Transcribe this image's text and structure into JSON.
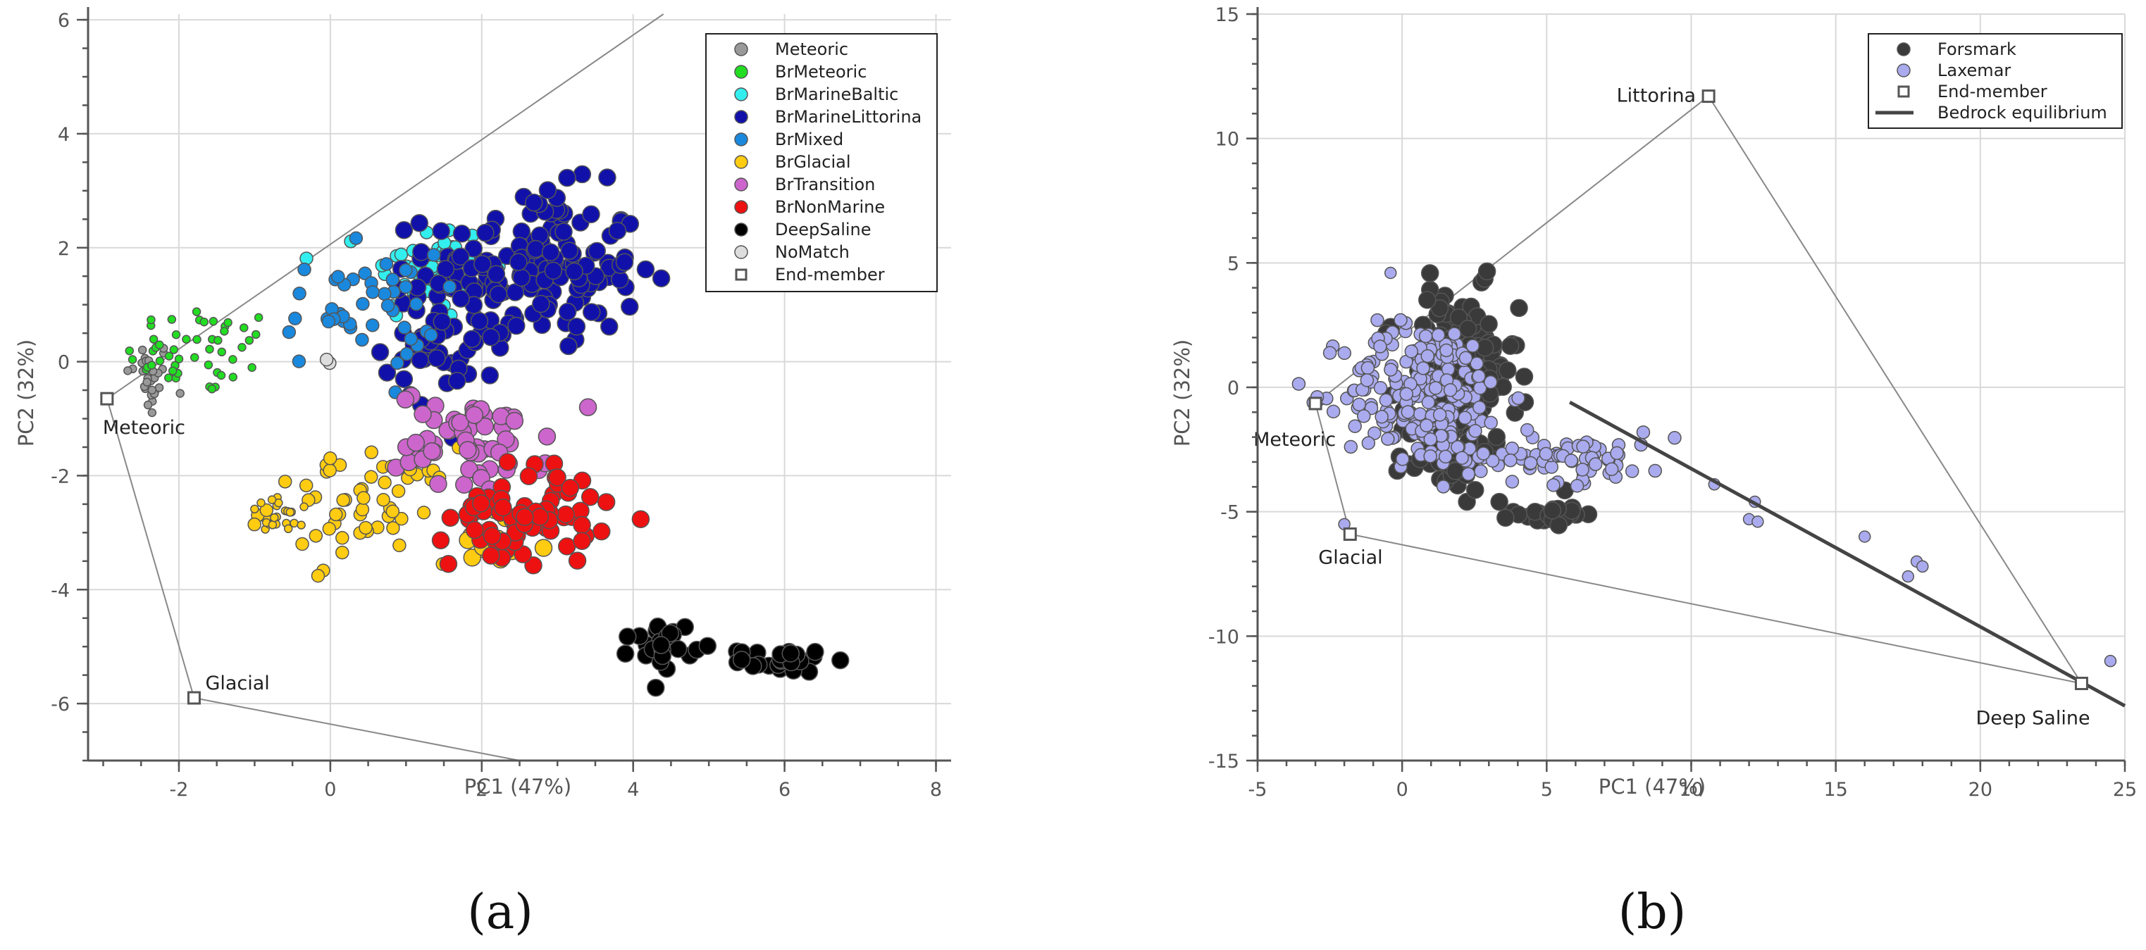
{
  "chart_data": [
    {
      "type": "scatter",
      "panel": "(a)",
      "xlabel": "PC1 (47%)",
      "ylabel": "PC2 (32%)",
      "xlim": [
        -3.2,
        8.2
      ],
      "ylim": [
        -7,
        6.1
      ],
      "xticks": [
        -2,
        0,
        2,
        4,
        6,
        8
      ],
      "yticks": [
        -6,
        -4,
        -2,
        0,
        2,
        4,
        6
      ],
      "grid": true,
      "legend_position": "top-right",
      "series": [
        {
          "name": "Meteoric",
          "color": "#999999",
          "clusters": [
            {
              "cx": -2.4,
              "cy": -0.3,
              "sx": 0.15,
              "sy": 0.35,
              "n": 30,
              "size": "small"
            }
          ]
        },
        {
          "name": "BrMeteoric",
          "color": "#22dd22",
          "clusters": [
            {
              "cx": -1.7,
              "cy": 0.2,
              "sx": 0.5,
              "sy": 0.4,
              "n": 50,
              "size": "small"
            }
          ]
        },
        {
          "name": "BrMarineBaltic",
          "color": "#33eeee",
          "clusters": [
            {
              "cx": 1.3,
              "cy": 1.6,
              "sx": 0.4,
              "sy": 0.45,
              "n": 55,
              "size": "medium"
            }
          ]
        },
        {
          "name": "BrMarineLittorina",
          "color": "#1111aa",
          "clusters": [
            {
              "cx": 2.7,
              "cy": 1.6,
              "sx": 0.7,
              "sy": 0.7,
              "n": 170,
              "size": "large"
            },
            {
              "cx": 1.5,
              "cy": 0.4,
              "sx": 0.4,
              "sy": 0.5,
              "n": 40,
              "size": "large"
            }
          ]
        },
        {
          "name": "BrMixed",
          "color": "#1a88dd",
          "clusters": [
            {
              "cx": 0.4,
              "cy": 0.9,
              "sx": 0.5,
              "sy": 0.5,
              "n": 45,
              "size": "medium"
            }
          ]
        },
        {
          "name": "BrGlacial",
          "color": "#ffcc11",
          "clusters": [
            {
              "cx": 0.4,
              "cy": -2.5,
              "sx": 0.6,
              "sy": 0.5,
              "n": 60,
              "size": "medium"
            },
            {
              "cx": -0.6,
              "cy": -2.7,
              "sx": 0.25,
              "sy": 0.15,
              "n": 22,
              "size": "small"
            },
            {
              "cx": 2.2,
              "cy": -3.2,
              "sx": 0.35,
              "sy": 0.3,
              "n": 18,
              "size": "large"
            }
          ]
        },
        {
          "name": "BrTransition",
          "color": "#cc66cc",
          "clusters": [
            {
              "cx": 1.9,
              "cy": -1.4,
              "sx": 0.5,
              "sy": 0.45,
              "n": 60,
              "size": "large"
            }
          ]
        },
        {
          "name": "BrNonMarine",
          "color": "#ee1111",
          "clusters": [
            {
              "cx": 2.6,
              "cy": -2.7,
              "sx": 0.5,
              "sy": 0.45,
              "n": 70,
              "size": "large"
            }
          ]
        },
        {
          "name": "DeepSaline",
          "color": "#000000",
          "clusters": [
            {
              "cx": 4.4,
              "cy": -4.95,
              "sx": 0.2,
              "sy": 0.2,
              "n": 25,
              "size": "large"
            },
            {
              "cx": 6.0,
              "cy": -5.25,
              "sx": 0.3,
              "sy": 0.1,
              "n": 25,
              "size": "large"
            }
          ]
        },
        {
          "name": "NoMatch",
          "color": "#dddddd",
          "clusters": [
            {
              "cx": -0.1,
              "cy": -0.05,
              "sx": 0.05,
              "sy": 0.05,
              "n": 2,
              "size": "medium"
            }
          ]
        }
      ],
      "end_members": [
        {
          "name": "Meteoric",
          "x": -2.95,
          "y": -0.65
        },
        {
          "name": "Glacial",
          "x": -1.8,
          "y": -5.9
        }
      ],
      "mixing_lines": [
        {
          "from": [
            -2.95,
            -0.65
          ],
          "to": [
            4.4,
            6.1
          ]
        },
        {
          "from": [
            -2.95,
            -0.65
          ],
          "to": [
            -1.8,
            -5.9
          ]
        },
        {
          "from": [
            -1.8,
            -5.9
          ],
          "to": [
            2.5,
            -7.0
          ]
        }
      ],
      "legend": [
        "Meteoric",
        "BrMeteoric",
        "BrMarineBaltic",
        "BrMarineLittorina",
        "BrMixed",
        "BrGlacial",
        "BrTransition",
        "BrNonMarine",
        "DeepSaline",
        "NoMatch",
        "End-member"
      ]
    },
    {
      "type": "scatter",
      "panel": "(b)",
      "xlabel": "PC1 (47%)",
      "ylabel": "PC2 (32%)",
      "xlim": [
        -5,
        25
      ],
      "ylim": [
        -15,
        15
      ],
      "xticks": [
        -5,
        0,
        5,
        10,
        15,
        20,
        25
      ],
      "yticks": [
        -15,
        -10,
        -5,
        0,
        5,
        10,
        15
      ],
      "grid": true,
      "legend_position": "top-right",
      "series": [
        {
          "name": "Forsmark",
          "color": "#3a3a3a",
          "clusters": [
            {
              "cx": 2.0,
              "cy": 0.5,
              "sx": 1.0,
              "sy": 1.7,
              "n": 160,
              "size": "large"
            },
            {
              "cx": 1.5,
              "cy": -2.5,
              "sx": 0.8,
              "sy": 0.8,
              "n": 50,
              "size": "large"
            },
            {
              "cx": 4.8,
              "cy": -5.0,
              "sx": 0.5,
              "sy": 0.25,
              "n": 18,
              "size": "large"
            },
            {
              "cx": 5.7,
              "cy": -5.1,
              "sx": 0.4,
              "sy": 0.2,
              "n": 14,
              "size": "large"
            }
          ]
        },
        {
          "name": "Laxemar",
          "color": "#aaaaee",
          "clusters": [
            {
              "cx": 0.8,
              "cy": -0.2,
              "sx": 1.4,
              "sy": 1.4,
              "n": 230,
              "size": "medium"
            },
            {
              "cx": 5.5,
              "cy": -2.8,
              "sx": 2.0,
              "sy": 0.5,
              "n": 80,
              "size": "medium"
            }
          ],
          "extra_points": [
            [
              -0.4,
              4.6
            ],
            [
              -2.0,
              -5.5
            ],
            [
              12.0,
              -5.3
            ],
            [
              12.3,
              -5.4
            ],
            [
              12.2,
              -4.6
            ],
            [
              16.0,
              -6.0
            ],
            [
              17.8,
              -7.0
            ],
            [
              17.5,
              -7.6
            ],
            [
              18.0,
              -7.2
            ],
            [
              24.5,
              -11.0
            ],
            [
              10.8,
              -3.9
            ]
          ]
        }
      ],
      "end_members": [
        {
          "name": "Littorina",
          "x": 10.6,
          "y": 11.7
        },
        {
          "name": "Meteoric",
          "x": -3.0,
          "y": -0.65
        },
        {
          "name": "Glacial",
          "x": -1.8,
          "y": -5.9
        },
        {
          "name": "Deep Saline",
          "x": 23.5,
          "y": -11.9
        }
      ],
      "mixing_lines": [
        {
          "from": [
            -3.0,
            -0.65
          ],
          "to": [
            10.6,
            11.7
          ]
        },
        {
          "from": [
            10.6,
            11.7
          ],
          "to": [
            23.5,
            -11.9
          ]
        },
        {
          "from": [
            -3.0,
            -0.65
          ],
          "to": [
            -1.8,
            -5.9
          ]
        },
        {
          "from": [
            -1.8,
            -5.9
          ],
          "to": [
            23.5,
            -11.9
          ]
        }
      ],
      "bedrock_equilibrium": {
        "from": [
          5.8,
          -0.6
        ],
        "to": [
          25,
          -12.8
        ]
      },
      "legend": [
        "Forsmark",
        "Laxemar",
        "End-member",
        "Bedrock equilibrium"
      ]
    }
  ]
}
